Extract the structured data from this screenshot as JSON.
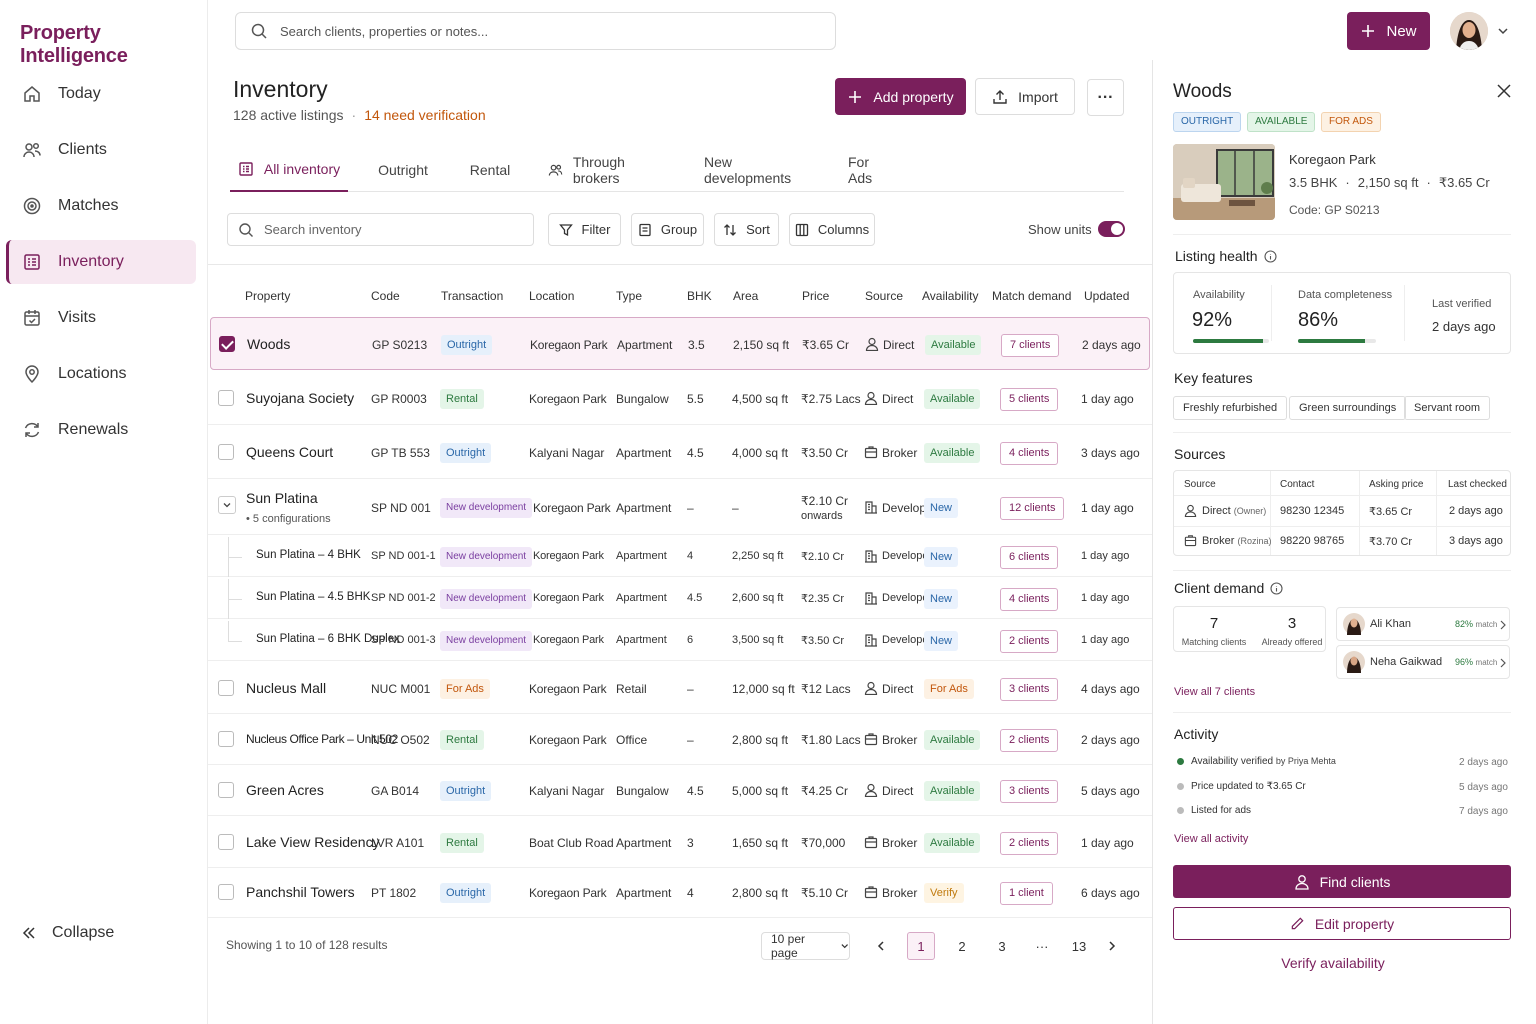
{
  "app": {
    "brand": "Property Intelligence",
    "new_label": "New",
    "search_placeholder": "Search clients, properties or notes..."
  },
  "sidebar": {
    "items": [
      {
        "label": "Today",
        "icon": "home-icon"
      },
      {
        "label": "Clients",
        "icon": "users-icon"
      },
      {
        "label": "Matches",
        "icon": "target-icon"
      },
      {
        "label": "Inventory",
        "icon": "inventory-icon",
        "active": true
      },
      {
        "label": "Visits",
        "icon": "calendar-icon"
      },
      {
        "label": "Locations",
        "icon": "pin-icon"
      },
      {
        "label": "Renewals",
        "icon": "refresh-icon"
      }
    ],
    "collapse_label": "Collapse"
  },
  "header": {
    "title": "Inventory",
    "active_listings": "128 active listings",
    "need_verification": "14 need verification",
    "add_property": "Add property",
    "import": "Import",
    "more": "···"
  },
  "tabs": [
    "All inventory",
    "Outright",
    "Rental",
    "Through brokers",
    "New developments",
    "For Ads"
  ],
  "toolbar": {
    "search_placeholder": "Search inventory",
    "filter": "Filter",
    "group": "Group",
    "sort": "Sort",
    "columns": "Columns",
    "show_units": "Show units",
    "show_units_on": true
  },
  "table": {
    "columns": [
      "Property",
      "Code",
      "Transaction",
      "Location",
      "Type",
      "BHK",
      "Area",
      "Price",
      "Source",
      "Availability",
      "Match demand",
      "Updated"
    ],
    "rows": [
      {
        "name": "Woods",
        "code": "GP S0213",
        "transaction": "Outright",
        "location": "Koregaon Park",
        "type": "Apartment",
        "bhk": "3.5",
        "area": "2,150 sq ft",
        "price": "₹3.65 Cr",
        "source": "Direct",
        "availability": "Available",
        "demand": "7 clients",
        "updated": "2 days ago"
      },
      {
        "name": "Suyojana Society",
        "code": "GP R0003",
        "transaction": "Rental",
        "location": "Koregaon Park",
        "type": "Bungalow",
        "bhk": "5.5",
        "area": "4,500 sq ft",
        "price": "₹2.75 Lacs",
        "source": "Direct",
        "availability": "Available",
        "demand": "5 clients",
        "updated": "1 day ago"
      },
      {
        "name": "Queens Court",
        "code": "GP TB 553",
        "transaction": "Outright",
        "location": "Kalyani Nagar",
        "type": "Apartment",
        "bhk": "4.5",
        "area": "4,000 sq ft",
        "price": "₹3.50 Cr",
        "source": "Broker",
        "availability": "Available",
        "demand": "4 clients",
        "updated": "3 days ago"
      },
      {
        "name": "Sun Platina",
        "sub": "• 5 configurations",
        "code": "SP ND 001",
        "transaction": "New development",
        "location": "Koregaon Park",
        "type": "Apartment",
        "bhk": "–",
        "area": "–",
        "price": "₹2.10 Cr",
        "price2": "onwards",
        "source": "Developer",
        "availability": "New",
        "demand": "12 clients",
        "updated": "1 day ago"
      },
      {
        "name": "Sun Platina – 4 BHK",
        "code": "SP ND 001-1",
        "transaction": "New development",
        "location": "Koregaon Park",
        "type": "Apartment",
        "bhk": "4",
        "area": "2,250 sq ft",
        "price": "₹2.10 Cr",
        "source": "Developer",
        "availability": "New",
        "demand": "6 clients",
        "updated": "1 day ago"
      },
      {
        "name": "Sun Platina – 4.5 BHK",
        "code": "SP ND 001-2",
        "transaction": "New development",
        "location": "Koregaon Park",
        "type": "Apartment",
        "bhk": "4.5",
        "area": "2,600 sq ft",
        "price": "₹2.35 Cr",
        "source": "Developer",
        "availability": "New",
        "demand": "4 clients",
        "updated": "1 day ago"
      },
      {
        "name": "Sun Platina – 6 BHK Duplex",
        "code": "SP ND 001-3",
        "transaction": "New development",
        "location": "Koregaon Park",
        "type": "Apartment",
        "bhk": "6",
        "area": "3,500 sq ft",
        "price": "₹3.50 Cr",
        "source": "Developer",
        "availability": "New",
        "demand": "2 clients",
        "updated": "1 day ago"
      },
      {
        "name": "Nucleus Mall",
        "code": "NUC M001",
        "transaction": "For Ads",
        "location": "Koregaon Park",
        "type": "Retail",
        "bhk": "–",
        "area": "12,000 sq ft",
        "price": "₹12 Lacs",
        "source": "Direct",
        "availability": "For Ads",
        "demand": "3 clients",
        "updated": "4 days ago"
      },
      {
        "name": "Nucleus Office Park – Unit 502",
        "code": "NUC O502",
        "transaction": "Rental",
        "location": "Koregaon Park",
        "type": "Office",
        "bhk": "–",
        "area": "2,800 sq ft",
        "price": "₹1.80 Lacs",
        "source": "Broker",
        "availability": "Available",
        "demand": "2 clients",
        "updated": "2 days ago"
      },
      {
        "name": "Green Acres",
        "code": "GA B014",
        "transaction": "Outright",
        "location": "Kalyani Nagar",
        "type": "Bungalow",
        "bhk": "4.5",
        "area": "5,000 sq ft",
        "price": "₹4.25 Cr",
        "source": "Direct",
        "availability": "Available",
        "demand": "3 clients",
        "updated": "5 days ago"
      },
      {
        "name": "Lake View Residency",
        "code": "LVR A101",
        "transaction": "Rental",
        "location": "Boat Club Road",
        "type": "Apartment",
        "bhk": "3",
        "area": "1,650 sq ft",
        "price": "₹70,000",
        "source": "Broker",
        "availability": "Available",
        "demand": "2 clients",
        "updated": "1 day ago"
      },
      {
        "name": "Panchshil Towers",
        "code": "PT 1802",
        "transaction": "Outright",
        "location": "Koregaon Park",
        "type": "Apartment",
        "bhk": "4",
        "area": "2,800 sq ft",
        "price": "₹5.10 Cr",
        "source": "Broker",
        "availability": "Verify",
        "demand": "1 client",
        "updated": "6 days ago"
      }
    ]
  },
  "pagination": {
    "showing": "Showing 1 to 10 of 128 results",
    "per_page": "10 per page",
    "pages": [
      "1",
      "2",
      "3",
      "···",
      "13"
    ],
    "current": "1"
  },
  "panel": {
    "title": "Woods",
    "badges": [
      "OUTRIGHT",
      "AVAILABLE",
      "FOR ADS"
    ],
    "location": "Koregaon Park",
    "bhk": "3.5 BHK",
    "area": "2,150 sq ft",
    "price": "₹3.65 Cr",
    "code_label": "Code:",
    "code": "GP S0213",
    "listing_health": {
      "title": "Listing health",
      "availability_label": "Availability",
      "availability": "92%",
      "availability_fill": 0.92,
      "completeness_label": "Data completeness",
      "completeness": "86%",
      "completeness_fill": 0.86,
      "last_verified_label": "Last verified",
      "last_verified": "2 days ago"
    },
    "key_features": {
      "title": "Key features",
      "items": [
        "Freshly refurbished",
        "Green surroundings",
        "Servant room"
      ]
    },
    "sources": {
      "title": "Sources",
      "headers": [
        "Source",
        "Contact",
        "Asking price",
        "Last checked"
      ],
      "rows": [
        {
          "source": "Direct",
          "who": "(Owner)",
          "contact": "98230 12345",
          "price": "₹3.65 Cr",
          "checked": "2 days ago"
        },
        {
          "source": "Broker",
          "who": "(Rozina)",
          "contact": "98220 98765",
          "price": "₹3.70 Cr",
          "checked": "3 days ago"
        }
      ]
    },
    "client_demand": {
      "title": "Client demand",
      "matching": "7",
      "matching_label": "Matching clients",
      "offered": "3",
      "offered_label": "Already offered",
      "clients": [
        {
          "name": "Ali Khan",
          "match": "82%",
          "match_label": "match"
        },
        {
          "name": "Neha Gaikwad",
          "match": "96%",
          "match_label": "match"
        }
      ],
      "view_all": "View all 7 clients"
    },
    "activity": {
      "title": "Activity",
      "items": [
        {
          "text": "Availability verified",
          "by": "by Priya Mehta",
          "time": "2 days ago"
        },
        {
          "text": "Price updated to ₹3.65 Cr",
          "by": "",
          "time": "5 days ago"
        },
        {
          "text": "Listed for ads",
          "by": "",
          "time": "7 days ago"
        }
      ],
      "view_all": "View all activity"
    },
    "find_clients": "Find clients",
    "edit_property": "Edit property",
    "verify": "Verify availability"
  }
}
